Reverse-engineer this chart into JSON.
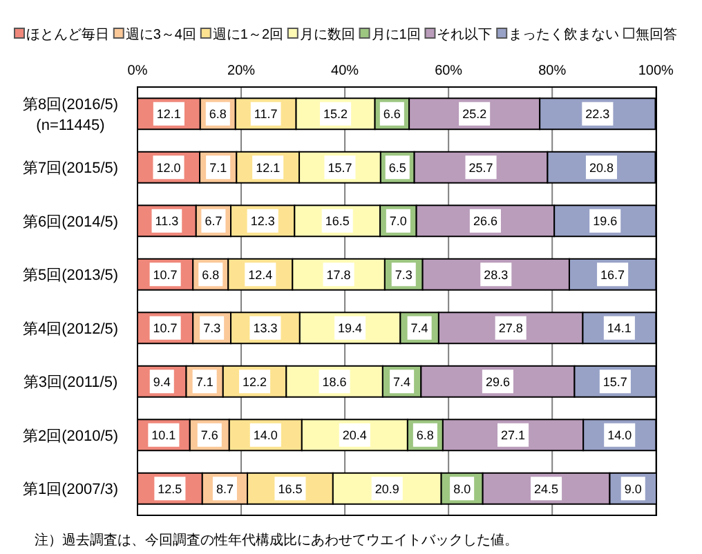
{
  "chart_data": {
    "type": "bar",
    "orientation": "horizontal",
    "stacked": true,
    "categories": [
      "第8回(2016/5)\n(n=11445)",
      "第7回(2015/5)",
      "第6回(2014/5)",
      "第5回(2013/5)",
      "第4回(2012/5)",
      "第3回(2011/5)",
      "第2回(2010/5)",
      "第1回(2007/3)"
    ],
    "series": [
      {
        "name": "ほとんど毎日",
        "color": "#ef877a",
        "values": [
          12.1,
          12.0,
          11.3,
          10.7,
          10.7,
          9.4,
          10.1,
          12.5
        ],
        "value_labels": [
          "12.1",
          "12.0",
          "11.3",
          "10.7",
          "10.7",
          "9.4",
          "10.1",
          "12.5"
        ]
      },
      {
        "name": "週に3～4回",
        "color": "#fbc898",
        "values": [
          6.8,
          7.1,
          6.7,
          6.8,
          7.3,
          7.1,
          7.6,
          8.7
        ],
        "value_labels": [
          "6.8",
          "7.1",
          "6.7",
          "6.8",
          "7.3",
          "7.1",
          "7.6",
          "8.7"
        ]
      },
      {
        "name": "週に1～2回",
        "color": "#fde391",
        "values": [
          11.7,
          12.1,
          12.3,
          12.4,
          13.3,
          12.2,
          14.0,
          16.5
        ],
        "value_labels": [
          "11.7",
          "12.1",
          "12.3",
          "12.4",
          "13.3",
          "12.2",
          "14.0",
          "16.5"
        ]
      },
      {
        "name": "月に数回",
        "color": "#fffbb5",
        "values": [
          15.2,
          15.7,
          16.5,
          17.8,
          19.4,
          18.6,
          20.4,
          20.9
        ],
        "value_labels": [
          "15.2",
          "15.7",
          "16.5",
          "17.8",
          "19.4",
          "18.6",
          "20.4",
          "20.9"
        ]
      },
      {
        "name": "月に1回",
        "color": "#9dc681",
        "values": [
          6.6,
          6.5,
          7.0,
          7.3,
          7.4,
          7.4,
          6.8,
          8.0
        ],
        "value_labels": [
          "6.6",
          "6.5",
          "7.0",
          "7.3",
          "7.4",
          "7.4",
          "6.8",
          "8.0"
        ]
      },
      {
        "name": "それ以下",
        "color": "#ba9cbb",
        "values": [
          25.2,
          25.7,
          26.6,
          28.3,
          27.8,
          29.6,
          27.1,
          24.5
        ],
        "value_labels": [
          "25.2",
          "25.7",
          "26.6",
          "28.3",
          "27.8",
          "29.6",
          "27.1",
          "24.5"
        ]
      },
      {
        "name": "まったく飲まない",
        "color": "#98a2c7",
        "values": [
          22.3,
          20.8,
          19.6,
          16.7,
          14.1,
          15.7,
          14.0,
          9.0
        ],
        "value_labels": [
          "22.3",
          "20.8",
          "19.6",
          "16.7",
          "14.1",
          "15.7",
          "14.0",
          "9.0"
        ]
      },
      {
        "name": "無回答",
        "color": "#ffffff",
        "values": [
          null,
          null,
          null,
          null,
          null,
          null,
          null,
          null
        ]
      }
    ],
    "xlim": [
      0,
      100.1
    ],
    "xticks": [
      {
        "value": 0,
        "label": "0%"
      },
      {
        "value": 20,
        "label": "20%"
      },
      {
        "value": 40,
        "label": "40%"
      },
      {
        "value": 60,
        "label": "60%"
      },
      {
        "value": 80,
        "label": "80%"
      },
      {
        "value": 100,
        "label": "100%"
      }
    ],
    "grid": "x",
    "legend": "top",
    "annotations": [
      "注）過去調査は、今回調査の性年代構成比にあわせてウエイトバックした値。"
    ]
  }
}
